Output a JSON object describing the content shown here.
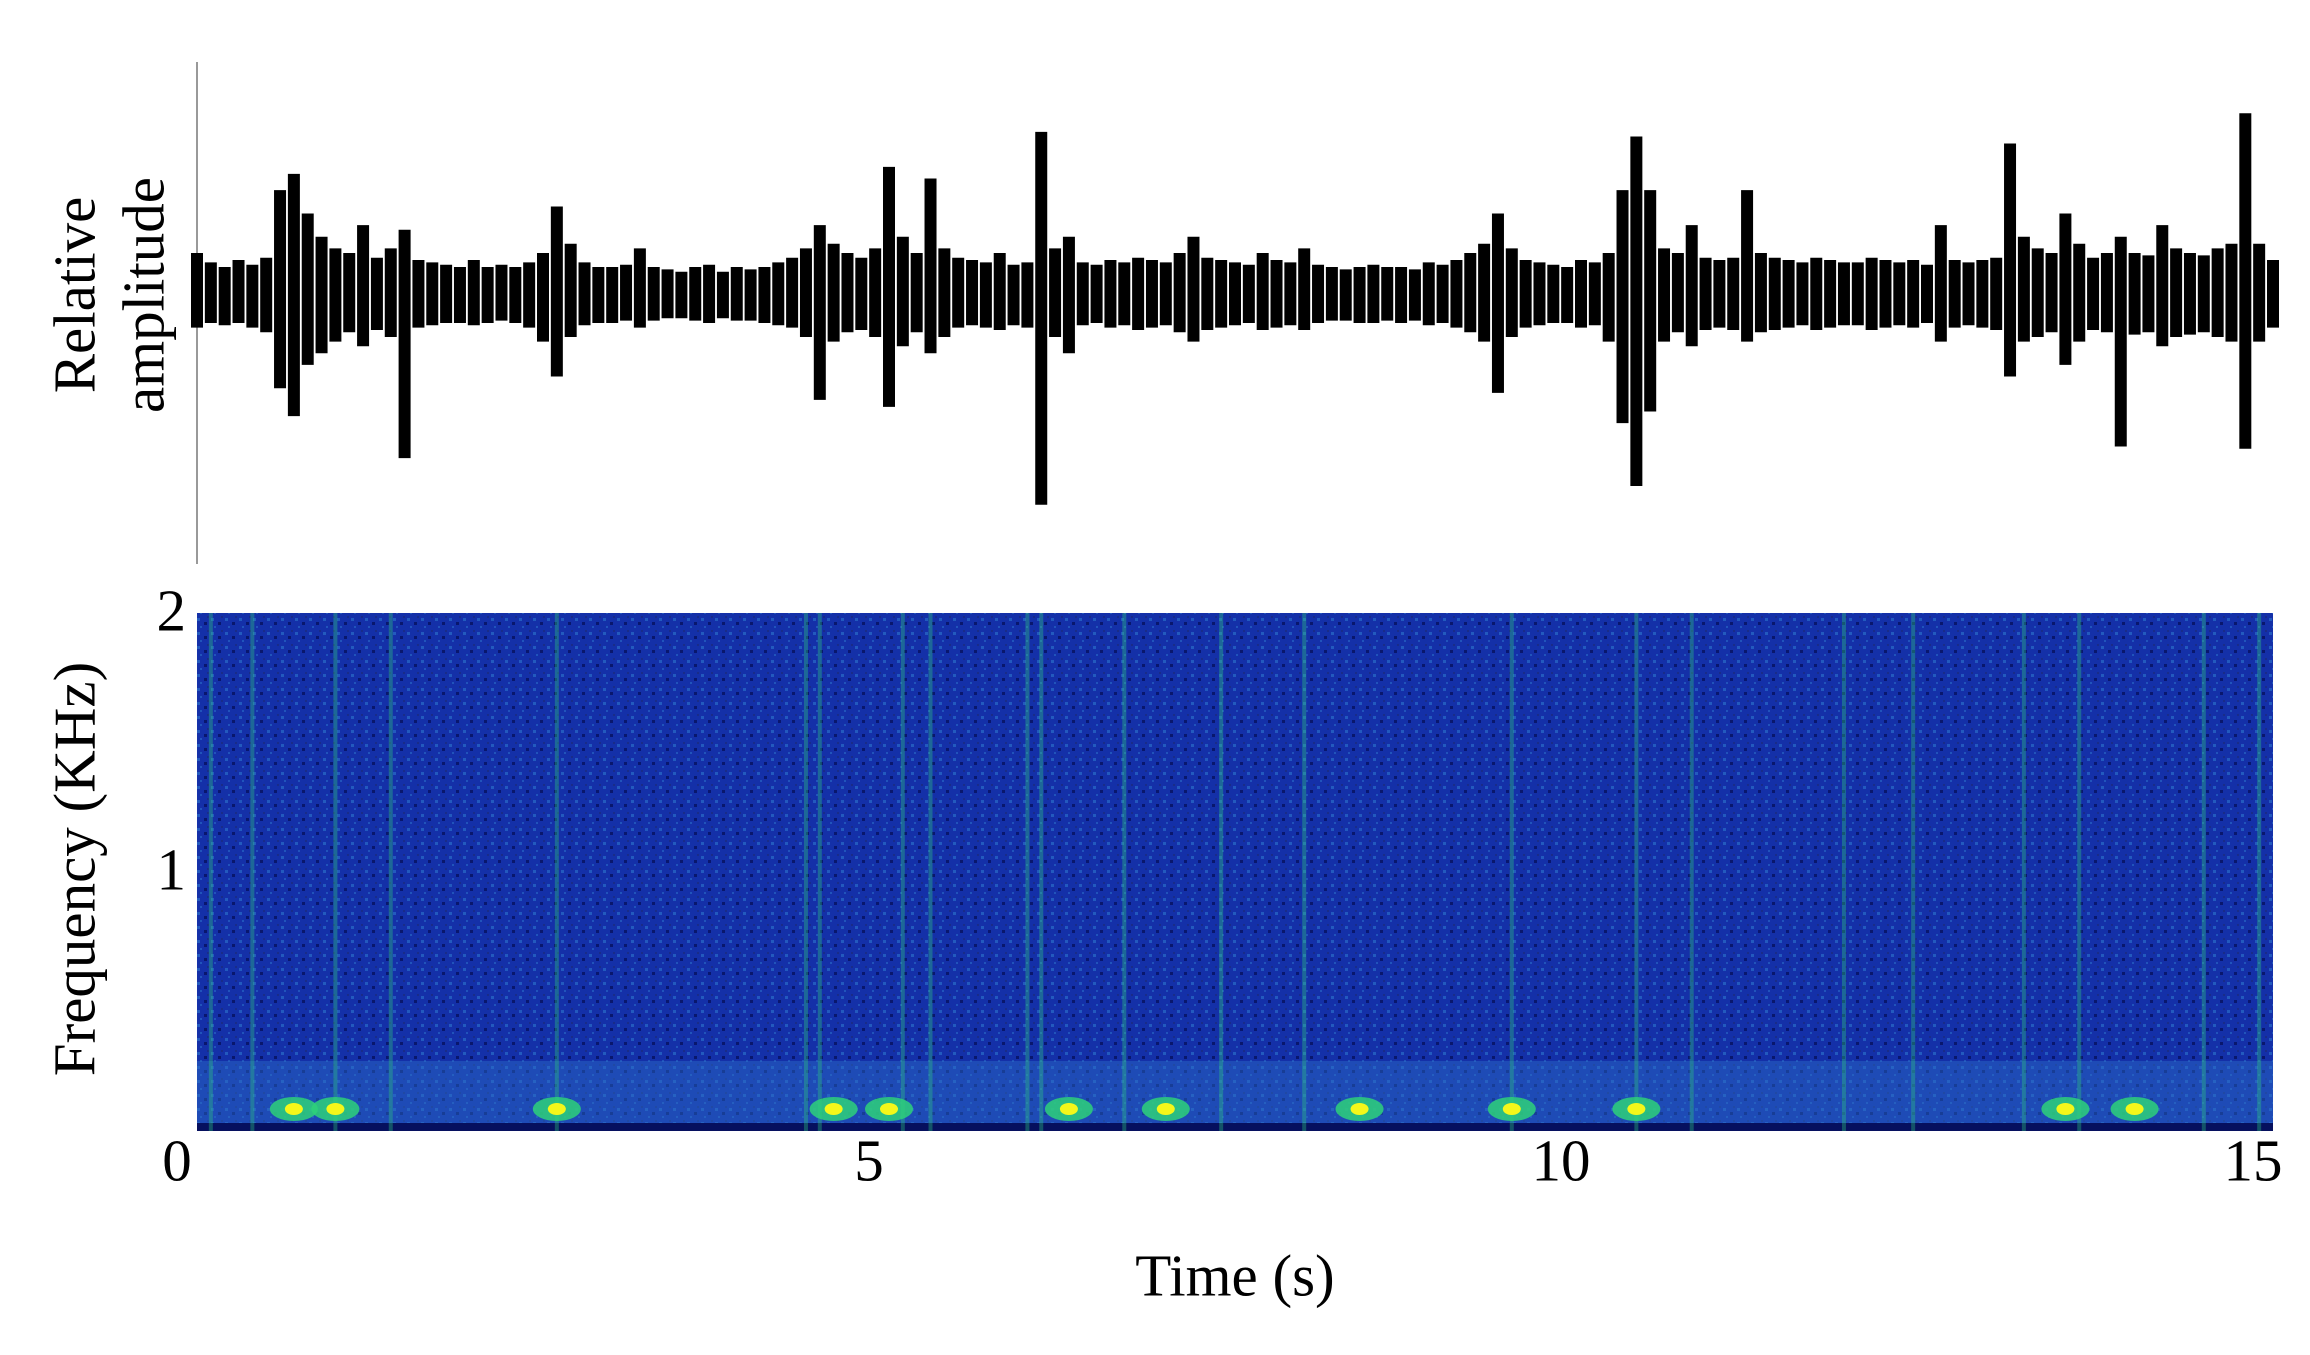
{
  "chart_data": [
    {
      "type": "waveform",
      "ylabel": [
        "Relative",
        "amplitude"
      ],
      "color": "#000000",
      "xlim": [
        0,
        15
      ],
      "ylim": [
        -1,
        1
      ],
      "x": [
        0,
        0.1,
        0.2,
        0.3,
        0.4,
        0.5,
        0.6,
        0.7,
        0.8,
        0.9,
        1,
        1.1,
        1.2,
        1.3,
        1.4,
        1.5,
        1.6,
        1.7,
        1.8,
        1.9,
        2,
        2.1,
        2.2,
        2.3,
        2.4,
        2.5,
        2.6,
        2.7,
        2.8,
        2.9,
        3,
        3.1,
        3.2,
        3.3,
        3.4,
        3.5,
        3.6,
        3.7,
        3.8,
        3.9,
        4,
        4.1,
        4.2,
        4.3,
        4.4,
        4.5,
        4.6,
        4.7,
        4.8,
        4.9,
        5,
        5.1,
        5.2,
        5.3,
        5.4,
        5.5,
        5.6,
        5.7,
        5.8,
        5.9,
        6,
        6.1,
        6.2,
        6.3,
        6.4,
        6.5,
        6.6,
        6.7,
        6.8,
        6.9,
        7,
        7.1,
        7.2,
        7.3,
        7.4,
        7.5,
        7.6,
        7.7,
        7.8,
        7.9,
        8,
        8.1,
        8.2,
        8.3,
        8.4,
        8.5,
        8.6,
        8.7,
        8.8,
        8.9,
        9,
        9.1,
        9.2,
        9.3,
        9.4,
        9.5,
        9.6,
        9.7,
        9.8,
        9.9,
        10,
        10.1,
        10.2,
        10.3,
        10.4,
        10.5,
        10.6,
        10.7,
        10.8,
        10.9,
        11,
        11.1,
        11.2,
        11.3,
        11.4,
        11.5,
        11.6,
        11.7,
        11.8,
        11.9,
        12,
        12.1,
        12.2,
        12.3,
        12.4,
        12.5,
        12.6,
        12.7,
        12.8,
        12.9,
        13,
        13.1,
        13.2,
        13.3,
        13.4,
        13.5,
        13.6,
        13.7,
        13.8,
        13.9,
        14,
        14.1,
        14.2,
        14.3,
        14.4,
        14.5,
        14.6,
        14.7,
        14.8,
        14.9,
        15
      ],
      "upper": [
        0.18,
        0.14,
        0.12,
        0.15,
        0.13,
        0.16,
        0.45,
        0.52,
        0.35,
        0.25,
        0.2,
        0.18,
        0.3,
        0.16,
        0.2,
        0.28,
        0.15,
        0.14,
        0.13,
        0.12,
        0.15,
        0.12,
        0.13,
        0.12,
        0.14,
        0.18,
        0.38,
        0.22,
        0.14,
        0.12,
        0.12,
        0.13,
        0.2,
        0.12,
        0.11,
        0.1,
        0.12,
        0.13,
        0.1,
        0.12,
        0.11,
        0.12,
        0.14,
        0.16,
        0.2,
        0.3,
        0.22,
        0.18,
        0.16,
        0.2,
        0.55,
        0.25,
        0.18,
        0.5,
        0.2,
        0.16,
        0.15,
        0.14,
        0.18,
        0.13,
        0.14,
        0.7,
        0.2,
        0.25,
        0.14,
        0.13,
        0.15,
        0.14,
        0.16,
        0.15,
        0.14,
        0.18,
        0.25,
        0.16,
        0.15,
        0.14,
        0.13,
        0.18,
        0.15,
        0.14,
        0.2,
        0.13,
        0.12,
        0.11,
        0.12,
        0.13,
        0.12,
        0.12,
        0.11,
        0.14,
        0.13,
        0.15,
        0.18,
        0.22,
        0.35,
        0.2,
        0.15,
        0.14,
        0.13,
        0.12,
        0.15,
        0.14,
        0.18,
        0.45,
        0.68,
        0.45,
        0.2,
        0.18,
        0.3,
        0.16,
        0.15,
        0.16,
        0.45,
        0.18,
        0.16,
        0.15,
        0.14,
        0.16,
        0.15,
        0.14,
        0.14,
        0.16,
        0.15,
        0.14,
        0.15,
        0.13,
        0.3,
        0.15,
        0.14,
        0.15,
        0.16,
        0.65,
        0.25,
        0.2,
        0.18,
        0.35,
        0.22,
        0.16,
        0.18,
        0.25,
        0.18,
        0.17,
        0.3,
        0.2,
        0.18,
        0.17,
        0.2,
        0.22,
        0.78,
        0.22,
        0.15
      ],
      "lower": [
        -0.14,
        -0.12,
        -0.13,
        -0.12,
        -0.14,
        -0.16,
        -0.4,
        -0.52,
        -0.3,
        -0.25,
        -0.2,
        -0.16,
        -0.22,
        -0.15,
        -0.18,
        -0.7,
        -0.14,
        -0.13,
        -0.12,
        -0.12,
        -0.13,
        -0.12,
        -0.11,
        -0.12,
        -0.14,
        -0.2,
        -0.35,
        -0.18,
        -0.13,
        -0.12,
        -0.12,
        -0.11,
        -0.14,
        -0.11,
        -0.1,
        -0.1,
        -0.11,
        -0.12,
        -0.1,
        -0.11,
        -0.11,
        -0.12,
        -0.13,
        -0.14,
        -0.18,
        -0.45,
        -0.2,
        -0.16,
        -0.15,
        -0.18,
        -0.48,
        -0.22,
        -0.16,
        -0.25,
        -0.18,
        -0.14,
        -0.13,
        -0.14,
        -0.15,
        -0.13,
        -0.14,
        -0.9,
        -0.18,
        -0.25,
        -0.13,
        -0.12,
        -0.14,
        -0.13,
        -0.15,
        -0.14,
        -0.13,
        -0.16,
        -0.2,
        -0.15,
        -0.14,
        -0.13,
        -0.12,
        -0.15,
        -0.14,
        -0.13,
        -0.15,
        -0.12,
        -0.11,
        -0.11,
        -0.12,
        -0.12,
        -0.11,
        -0.12,
        -0.11,
        -0.13,
        -0.12,
        -0.14,
        -0.16,
        -0.2,
        -0.42,
        -0.18,
        -0.14,
        -0.13,
        -0.12,
        -0.12,
        -0.14,
        -0.13,
        -0.2,
        -0.55,
        -0.82,
        -0.5,
        -0.2,
        -0.16,
        -0.22,
        -0.15,
        -0.14,
        -0.15,
        -0.2,
        -0.16,
        -0.15,
        -0.14,
        -0.13,
        -0.15,
        -0.14,
        -0.13,
        -0.13,
        -0.15,
        -0.14,
        -0.13,
        -0.14,
        -0.12,
        -0.2,
        -0.14,
        -0.13,
        -0.14,
        -0.15,
        -0.35,
        -0.2,
        -0.18,
        -0.16,
        -0.3,
        -0.2,
        -0.15,
        -0.16,
        -0.65,
        -0.17,
        -0.16,
        -0.22,
        -0.18,
        -0.17,
        -0.16,
        -0.18,
        -0.2,
        -0.66,
        -0.2,
        -0.14
      ]
    },
    {
      "type": "spectrogram",
      "xlabel": "Time (s)",
      "ylabel": "Frequency (KHz)",
      "xlim": [
        0,
        15
      ],
      "ylim": [
        0,
        2
      ],
      "xticks": [
        0,
        5,
        10,
        15
      ],
      "yticks": [
        1,
        2
      ],
      "colors": [
        "#06105e",
        "#1430a8",
        "#2a6cc8",
        "#2ed17a",
        "#f4f71a"
      ],
      "streaks": [
        0.1,
        0.4,
        1.0,
        1.4,
        2.6,
        4.4,
        4.5,
        5.1,
        5.3,
        6.0,
        6.1,
        6.7,
        7.4,
        8.0,
        9.5,
        10.4,
        10.8,
        11.9,
        12.4,
        13.2,
        13.6,
        14.5,
        14.9
      ],
      "events": [
        0.7,
        1.0,
        2.6,
        4.6,
        5.0,
        6.3,
        7.0,
        8.4,
        9.5,
        10.4,
        13.5,
        14.0
      ]
    }
  ]
}
